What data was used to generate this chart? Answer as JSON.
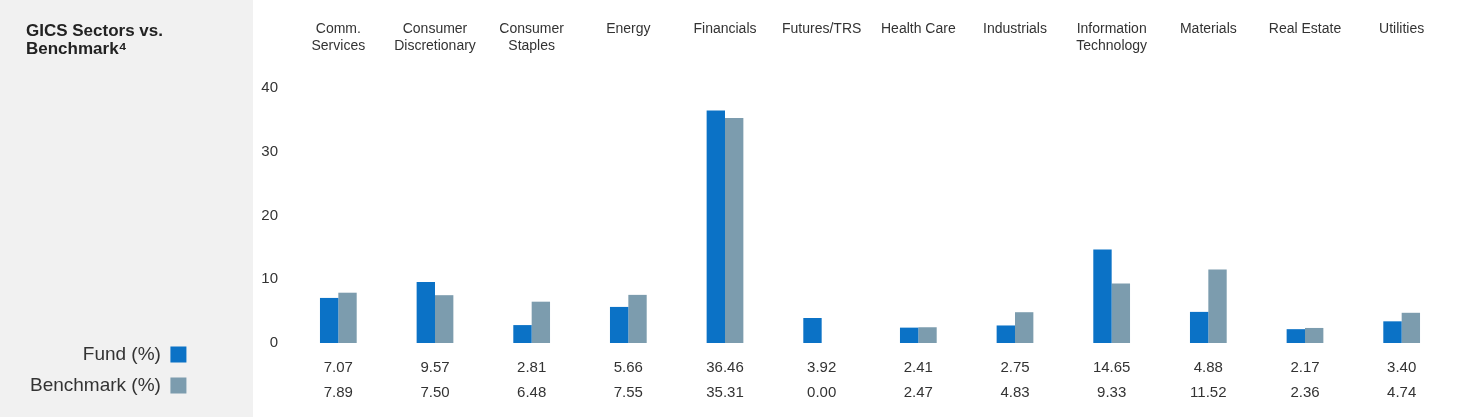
{
  "chart_data": {
    "type": "bar",
    "title": "GICS Sectors vs. Benchmark⁴",
    "categories": [
      "Comm. Services",
      "Consumer Discretionary",
      "Consumer Staples",
      "Energy",
      "Financials",
      "Futures/TRS",
      "Health Care",
      "Industrials",
      "Information Technology",
      "Materials",
      "Real Estate",
      "Utilities"
    ],
    "series": [
      {
        "name": "Fund (%)",
        "color": "#0b72c6",
        "values": [
          7.07,
          9.57,
          2.81,
          5.66,
          36.46,
          3.92,
          2.41,
          2.75,
          14.65,
          4.88,
          2.17,
          3.4
        ],
        "value_labels": [
          "7.07",
          "9.57",
          "2.81",
          "5.66",
          "36.46",
          "3.92",
          "2.41",
          "2.75",
          "14.65",
          "4.88",
          "2.17",
          "3.40"
        ]
      },
      {
        "name": "Benchmark (%)",
        "color": "#7c9cae",
        "values": [
          7.89,
          7.5,
          6.48,
          7.55,
          35.31,
          0.0,
          2.47,
          4.83,
          9.33,
          11.52,
          2.36,
          4.74
        ],
        "value_labels": [
          "7.89",
          "7.50",
          "6.48",
          "7.55",
          "35.31",
          "0.00",
          "2.47",
          "4.83",
          "9.33",
          "11.52",
          "2.36",
          "4.74"
        ]
      }
    ],
    "ylim": [
      0,
      40
    ],
    "yticks": [
      0,
      10,
      20,
      30,
      40
    ],
    "grid": false,
    "legend": "bottom left"
  }
}
